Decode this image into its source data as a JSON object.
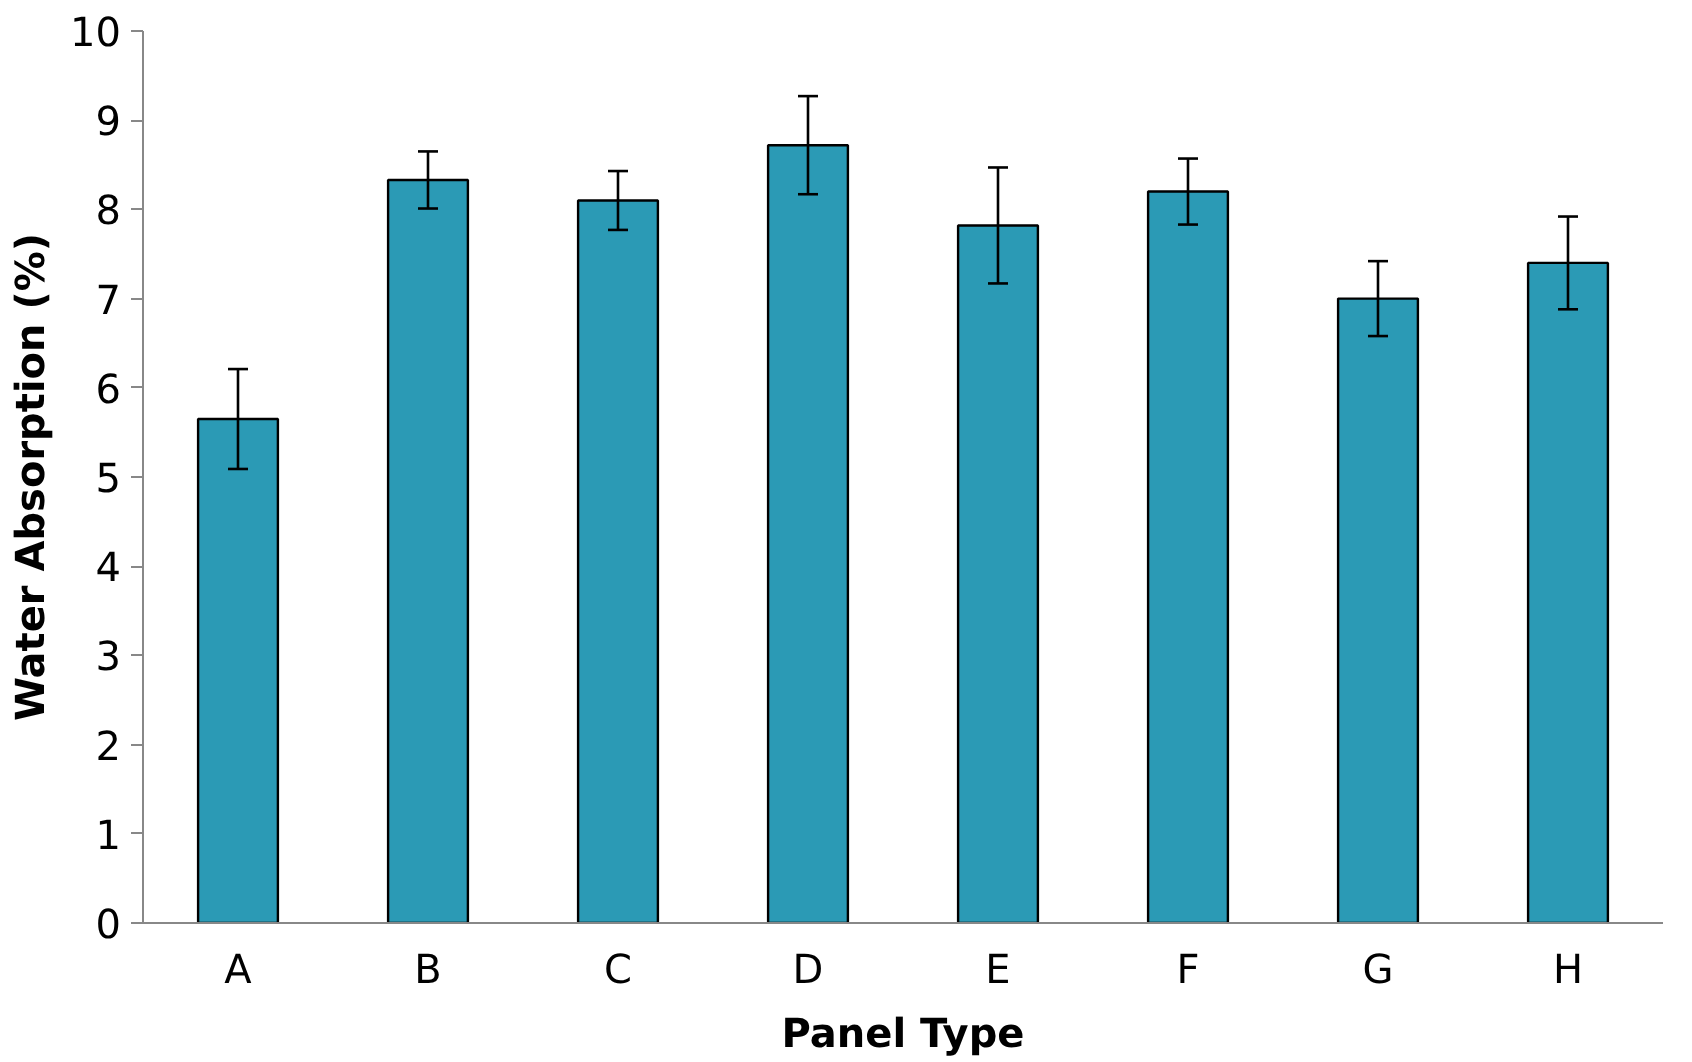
{
  "chart_data": {
    "type": "bar",
    "xlabel": "Panel Type",
    "ylabel": "Water Absorption (%)",
    "categories": [
      "A",
      "B",
      "C",
      "D",
      "E",
      "F",
      "G",
      "H"
    ],
    "values": [
      5.65,
      8.33,
      8.1,
      8.72,
      7.82,
      8.2,
      7.0,
      7.4
    ],
    "errors": [
      0.56,
      0.32,
      0.33,
      0.55,
      0.65,
      0.37,
      0.42,
      0.52
    ],
    "color": "#2b9ab5",
    "ylim": [
      0,
      10
    ],
    "yticks": [
      0,
      1,
      2,
      3,
      4,
      5,
      6,
      7,
      8,
      9,
      10
    ],
    "grid": false
  }
}
